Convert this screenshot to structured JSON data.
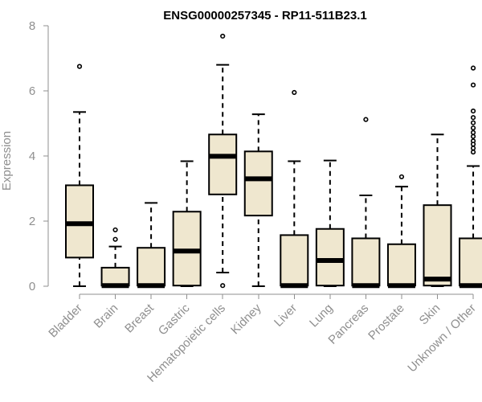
{
  "chart_data": {
    "type": "boxplot",
    "title": "ENSG00000257345 - RP11-511B23.1",
    "xlabel": "",
    "ylabel": "Expression",
    "ylim": [
      0,
      8
    ],
    "yticks": [
      0,
      2,
      4,
      6,
      8
    ],
    "grid": false,
    "legend": "none",
    "colors": {
      "box_fill": "#efe7cf",
      "box_stroke": "#000000",
      "axis": "#8f8f8f",
      "title": "#000000"
    },
    "categories": [
      "Bladder",
      "Brain",
      "Breast",
      "Gastric",
      "Hematopoietic cells",
      "Kidney",
      "Liver",
      "Lung",
      "Pancreas",
      "Prostate",
      "Skin",
      "Unknown / Other"
    ],
    "series": [
      {
        "name": "Bladder",
        "min": 0,
        "q1": 0.88,
        "median": 1.92,
        "q3": 3.1,
        "max": 5.35,
        "outliers": [
          6.75
        ]
      },
      {
        "name": "Brain",
        "min": 0,
        "q1": 0.02,
        "median": 0.02,
        "q3": 0.57,
        "max": 1.22,
        "outliers": [
          1.44,
          1.73
        ]
      },
      {
        "name": "Breast",
        "min": 0,
        "q1": 0.02,
        "median": 0.02,
        "q3": 1.18,
        "max": 2.56,
        "outliers": []
      },
      {
        "name": "Gastric",
        "min": 0,
        "q1": 0.02,
        "median": 1.08,
        "q3": 2.29,
        "max": 3.84,
        "outliers": []
      },
      {
        "name": "Hematopoietic cells",
        "min": 0.42,
        "q1": 2.82,
        "median": 3.99,
        "q3": 4.66,
        "max": 6.8,
        "outliers": [
          7.68,
          0.02
        ]
      },
      {
        "name": "Kidney",
        "min": 0,
        "q1": 2.17,
        "median": 3.3,
        "q3": 4.14,
        "max": 5.28,
        "outliers": []
      },
      {
        "name": "Liver",
        "min": 0,
        "q1": 0.02,
        "median": 0.02,
        "q3": 1.57,
        "max": 3.84,
        "outliers": [
          5.95
        ]
      },
      {
        "name": "Lung",
        "min": 0,
        "q1": 0.02,
        "median": 0.79,
        "q3": 1.76,
        "max": 3.86,
        "outliers": []
      },
      {
        "name": "Pancreas",
        "min": 0,
        "q1": 0.02,
        "median": 0.02,
        "q3": 1.47,
        "max": 2.79,
        "outliers": [
          5.12
        ]
      },
      {
        "name": "Prostate",
        "min": 0,
        "q1": 0.02,
        "median": 0.02,
        "q3": 1.29,
        "max": 3.06,
        "outliers": [
          3.36
        ]
      },
      {
        "name": "Skin",
        "min": 0,
        "q1": 0.02,
        "median": 0.22,
        "q3": 2.49,
        "max": 4.66,
        "outliers": []
      },
      {
        "name": "Unknown / Other",
        "min": 0,
        "q1": 0.02,
        "median": 0.02,
        "q3": 1.47,
        "max": 3.69,
        "outliers": [
          6.7,
          6.18,
          5.38,
          5.18,
          5.02,
          4.86,
          4.72,
          4.6,
          4.46,
          4.36,
          4.24,
          4.12
        ]
      }
    ]
  }
}
